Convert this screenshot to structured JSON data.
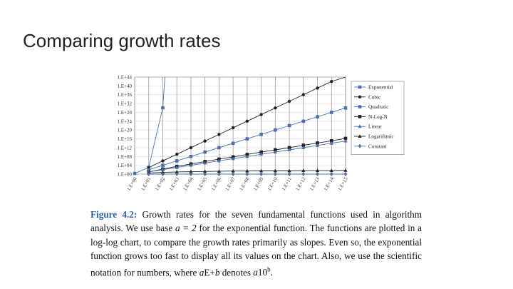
{
  "slide": {
    "title": "Comparing growth rates"
  },
  "chart_data": {
    "type": "line",
    "title": "",
    "xlabel": "",
    "ylabel": "",
    "x_exponents": [
      0,
      1,
      2,
      3,
      4,
      5,
      6,
      7,
      8,
      9,
      10,
      11,
      12,
      13,
      14,
      15
    ],
    "x_tick_labels": [
      "1.E+00",
      "1.E+01",
      "1.E+02",
      "1.E+03",
      "1.E+04",
      "1.E+05",
      "1.E+06",
      "1.E+07",
      "1.E+08",
      "1.E+09",
      "1.E+10",
      "1.E+11",
      "1.E+12",
      "1.E+13",
      "1.E+14",
      "1.E+15"
    ],
    "y_tick_labels": [
      "1.E+00",
      "1.E+04",
      "1.E+08",
      "1.E+12",
      "1.E+16",
      "1.E+20",
      "1.E+24",
      "1.E+28",
      "1.E+32",
      "1.E+36",
      "1.E+40",
      "1.E+44"
    ],
    "y_exponent_range": [
      0,
      44
    ],
    "xlim": [
      0,
      15
    ],
    "legend_position": "right",
    "series": [
      {
        "name": "Exponential",
        "marker": "square",
        "color": "#4a6fb0",
        "points": [
          [
            0,
            0.3
          ],
          [
            1,
            3.0
          ],
          [
            2,
            30.1
          ],
          [
            2.15,
            44
          ]
        ]
      },
      {
        "name": "Cubic",
        "marker": "circle",
        "color": "#222222",
        "points": [
          [
            1,
            3
          ],
          [
            2,
            6
          ],
          [
            3,
            9
          ],
          [
            4,
            12
          ],
          [
            5,
            15
          ],
          [
            6,
            18
          ],
          [
            7,
            21
          ],
          [
            8,
            24
          ],
          [
            9,
            27
          ],
          [
            10,
            30
          ],
          [
            11,
            33
          ],
          [
            12,
            36
          ],
          [
            13,
            39
          ],
          [
            14,
            42
          ],
          [
            15,
            45
          ]
        ]
      },
      {
        "name": "Quadratic",
        "marker": "square",
        "color": "#4a6fb0",
        "points": [
          [
            1,
            2
          ],
          [
            2,
            4
          ],
          [
            3,
            6
          ],
          [
            4,
            8
          ],
          [
            5,
            10
          ],
          [
            6,
            12
          ],
          [
            7,
            14
          ],
          [
            8,
            16
          ],
          [
            9,
            18
          ],
          [
            10,
            20
          ],
          [
            11,
            22
          ],
          [
            12,
            24
          ],
          [
            13,
            26
          ],
          [
            14,
            28
          ],
          [
            15,
            30
          ]
        ]
      },
      {
        "name": "N-Log-N",
        "marker": "square",
        "color": "#222222",
        "points": [
          [
            1,
            1
          ],
          [
            2,
            2.3
          ],
          [
            3,
            3.5
          ],
          [
            4,
            4.6
          ],
          [
            5,
            5.7
          ],
          [
            6,
            6.8
          ],
          [
            7,
            7.8
          ],
          [
            8,
            8.9
          ],
          [
            9,
            10
          ],
          [
            10,
            11
          ],
          [
            11,
            12
          ],
          [
            12,
            13.1
          ],
          [
            13,
            14.1
          ],
          [
            14,
            15.1
          ],
          [
            15,
            16.2
          ]
        ]
      },
      {
        "name": "Linear",
        "marker": "triangle",
        "color": "#4a6fb0",
        "points": [
          [
            1,
            1
          ],
          [
            2,
            2
          ],
          [
            3,
            3
          ],
          [
            4,
            4
          ],
          [
            5,
            5
          ],
          [
            6,
            6
          ],
          [
            7,
            7
          ],
          [
            8,
            8
          ],
          [
            9,
            9
          ],
          [
            10,
            10
          ],
          [
            11,
            11
          ],
          [
            12,
            12
          ],
          [
            13,
            13
          ],
          [
            14,
            14
          ],
          [
            15,
            15
          ]
        ]
      },
      {
        "name": "Logarithmic",
        "marker": "triangle",
        "color": "#222222",
        "points": [
          [
            1,
            0.5
          ],
          [
            2,
            0.8
          ],
          [
            3,
            1
          ],
          [
            4,
            1.1
          ],
          [
            5,
            1.2
          ],
          [
            6,
            1.3
          ],
          [
            7,
            1.4
          ],
          [
            8,
            1.4
          ],
          [
            9,
            1.5
          ],
          [
            10,
            1.5
          ],
          [
            11,
            1.5
          ],
          [
            12,
            1.6
          ],
          [
            13,
            1.6
          ],
          [
            14,
            1.6
          ],
          [
            15,
            1.7
          ]
        ]
      },
      {
        "name": "Constant",
        "marker": "diamond",
        "color": "#4a6fb0",
        "points": [
          [
            1,
            0
          ],
          [
            2,
            0
          ],
          [
            3,
            0
          ],
          [
            4,
            0
          ],
          [
            5,
            0
          ],
          [
            6,
            0
          ],
          [
            7,
            0
          ],
          [
            8,
            0
          ],
          [
            9,
            0
          ],
          [
            10,
            0
          ],
          [
            11,
            0
          ],
          [
            12,
            0
          ],
          [
            13,
            0
          ],
          [
            14,
            0
          ],
          [
            15,
            0
          ]
        ]
      }
    ]
  },
  "caption": {
    "label": "Figure 4.2:",
    "line1": "Growth rates for the seven fundamental functions used in algorithm",
    "line2a": "analysis. We use base",
    "line2_math": "a = 2",
    "line2b": "for the exponential function. The functions are plotted",
    "line3": "in a log-log chart, to compare the growth rates primarily as slopes. Even so, the",
    "line4": "exponential function grows too fast to display all its values on the chart. Also, we",
    "line5a": "use the scientific notation for numbers, where",
    "line5_math1": "a",
    "line5_mid": "E+",
    "line5_math2": "b",
    "line5b": "denotes",
    "line5_math3": "a",
    "line5_num": "10",
    "line5_sup": "b",
    "line5_end": "."
  }
}
